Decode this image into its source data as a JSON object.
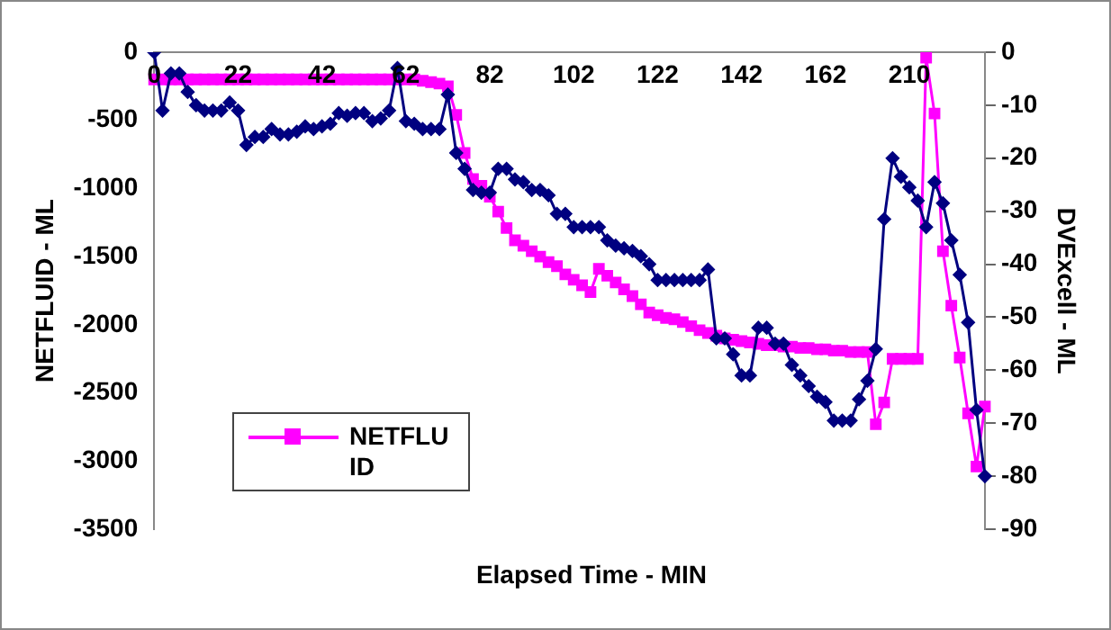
{
  "chart_data": {
    "type": "line",
    "xlabel": "Elapsed Time - MIN",
    "ylabel": "NETFLUID - ML",
    "y2label": "DVExcell - ML",
    "categories": [
      "0",
      null,
      null,
      null,
      null,
      null,
      null,
      null,
      null,
      null,
      "22",
      null,
      null,
      null,
      null,
      null,
      null,
      null,
      null,
      null,
      "42",
      null,
      null,
      null,
      null,
      null,
      null,
      null,
      null,
      null,
      "62",
      null,
      null,
      null,
      null,
      null,
      null,
      null,
      null,
      null,
      "82",
      null,
      null,
      null,
      null,
      null,
      null,
      null,
      null,
      null,
      "102",
      null,
      null,
      null,
      null,
      null,
      null,
      null,
      null,
      null,
      "122",
      null,
      null,
      null,
      null,
      null,
      null,
      null,
      null,
      null,
      "142",
      null,
      null,
      null,
      null,
      null,
      null,
      null,
      null,
      null,
      "162",
      null,
      null,
      null,
      null,
      null,
      null,
      null,
      null,
      null,
      "210",
      null,
      null,
      null,
      null,
      null,
      null,
      null,
      null,
      null
    ],
    "series": [
      {
        "color": "#000080",
        "axis": "y2",
        "marker": "diamond",
        "values": [
          0,
          -11,
          -4,
          -4,
          -7.5,
          -10,
          -11,
          -11,
          -11,
          -9.5,
          -11,
          -17.5,
          -16,
          -16,
          -14.5,
          -15.5,
          -15.5,
          -15,
          -14,
          -14.5,
          -14,
          -13.5,
          -11.5,
          -12,
          -11.5,
          -11.5,
          -13,
          -12.5,
          -11,
          -3,
          -13,
          -13.5,
          -14.5,
          -14.5,
          -14.5,
          -8,
          -19,
          -22,
          -26,
          -26.5,
          -26.5,
          -22,
          -22,
          -24,
          -24.5,
          -26,
          -26,
          -27,
          -30.5,
          -30.5,
          -33,
          -33,
          -33,
          -33,
          -35.5,
          -36.5,
          -37,
          -37.5,
          -38.5,
          -40,
          -43,
          -43,
          -43,
          -43,
          -43,
          -43,
          -41,
          -54,
          -54,
          -57,
          -61,
          -61,
          -52,
          -52,
          -55,
          -55,
          -59,
          -61,
          -63,
          -65,
          -66,
          -69.5,
          -69.5,
          -69.5,
          -65.5,
          -62,
          -56,
          -31.5,
          -20,
          -23.5,
          -25.5,
          -28,
          -33,
          -24.5,
          -28.5,
          -35.5,
          -42,
          -51,
          -67.5,
          -80
        ]
      },
      {
        "name": "NETFLUID",
        "color": "#ff00ff",
        "marker": "square",
        "values": [
          -200,
          -200,
          -200,
          -200,
          -200,
          -200,
          -200,
          -200,
          -200,
          -200,
          -200,
          -200,
          -200,
          -200,
          -200,
          -200,
          -200,
          -200,
          -200,
          -200,
          -200,
          -200,
          -200,
          -200,
          -200,
          -200,
          -200,
          -200,
          -200,
          -200,
          -200,
          -200,
          -210,
          -220,
          -230,
          -250,
          -460,
          -740,
          -930,
          -980,
          -1060,
          -1170,
          -1290,
          -1380,
          -1420,
          -1460,
          -1500,
          -1540,
          -1570,
          -1630,
          -1670,
          -1710,
          -1760,
          -1590,
          -1640,
          -1690,
          -1740,
          -1790,
          -1850,
          -1910,
          -1930,
          -1950,
          -1960,
          -1980,
          -2010,
          -2040,
          -2060,
          -2080,
          -2100,
          -2110,
          -2120,
          -2130,
          -2140,
          -2150,
          -2150,
          -2160,
          -2160,
          -2170,
          -2170,
          -2180,
          -2180,
          -2190,
          -2190,
          -2200,
          -2200,
          -2200,
          -2730,
          -2570,
          -2250,
          -2250,
          -2250,
          -2250,
          -40,
          -450,
          -1460,
          -1860,
          -2240,
          -2650,
          -3040,
          -2600
        ]
      }
    ],
    "ylim": [
      -3500,
      0
    ],
    "yticks": [
      -3500,
      -3000,
      -2500,
      -2000,
      -1500,
      -1000,
      -500,
      0
    ],
    "y2lim": [
      -90,
      0
    ],
    "y2ticks": [
      -90,
      -80,
      -70,
      -60,
      -50,
      -40,
      -30,
      -20,
      -10,
      0
    ],
    "grid": false,
    "legend": "bottom left",
    "line_style": "solid"
  }
}
